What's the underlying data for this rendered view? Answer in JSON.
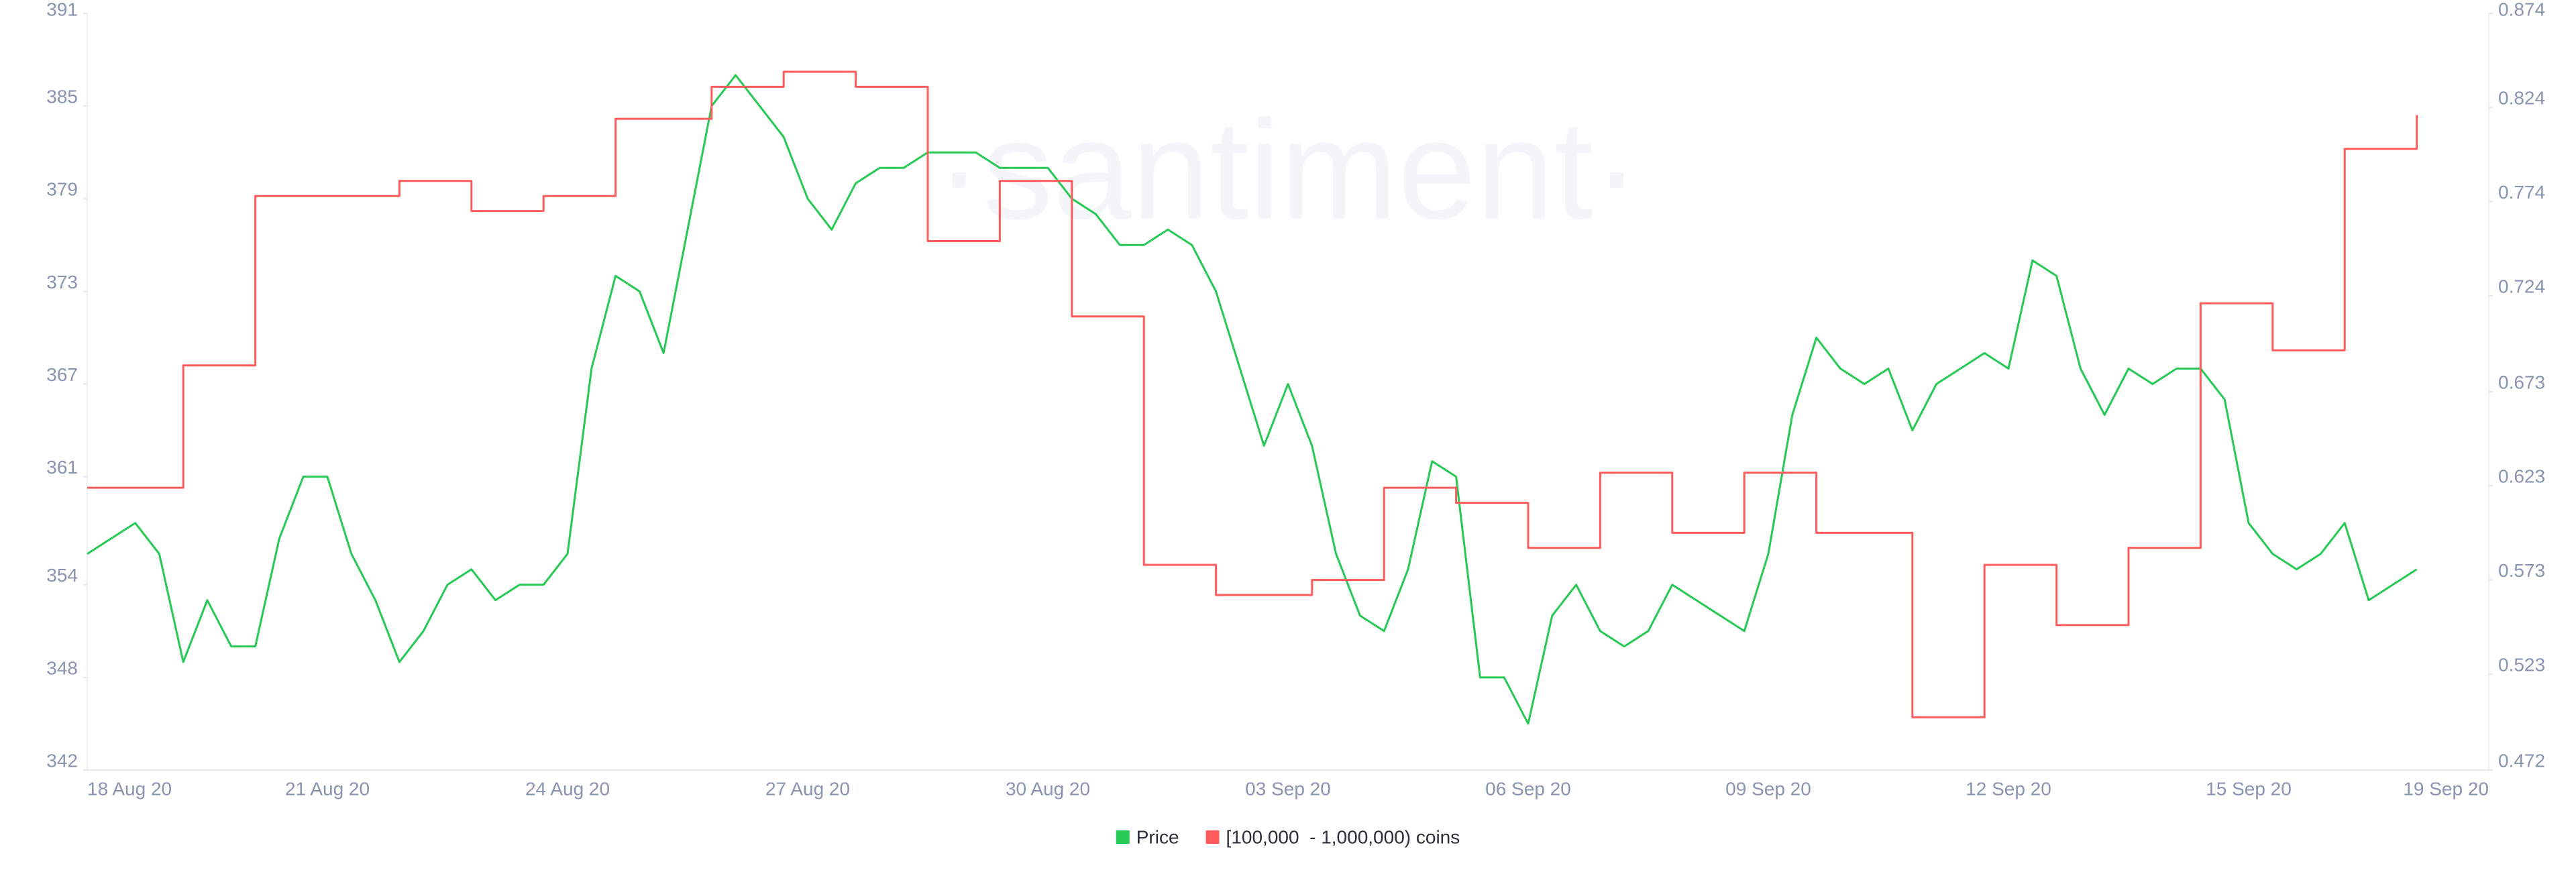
{
  "chart_data": {
    "type": "line",
    "watermark": "·santiment·",
    "categories": [
      "18 Aug 20",
      null,
      null,
      null,
      null,
      null,
      null,
      null,
      null,
      null,
      "21 Aug 20",
      null,
      null,
      null,
      null,
      null,
      null,
      null,
      null,
      null,
      "24 Aug 20",
      null,
      null,
      null,
      null,
      null,
      null,
      null,
      null,
      null,
      "27 Aug 20",
      null,
      null,
      null,
      null,
      null,
      null,
      null,
      null,
      null,
      "30 Aug 20",
      null,
      null,
      null,
      null,
      null,
      null,
      null,
      null,
      null,
      "03 Sep 20",
      null,
      null,
      null,
      null,
      null,
      null,
      null,
      null,
      null,
      "06 Sep 20",
      null,
      null,
      null,
      null,
      null,
      null,
      null,
      null,
      null,
      "09 Sep 20",
      null,
      null,
      null,
      null,
      null,
      null,
      null,
      null,
      null,
      "12 Sep 20",
      null,
      null,
      null,
      null,
      null,
      null,
      null,
      null,
      null,
      "15 Sep 20",
      null,
      null,
      null,
      null,
      null,
      null,
      null,
      null,
      null,
      "19 Sep 20"
    ],
    "series": [
      {
        "name": "Price",
        "color": "#26c953",
        "axis": "y",
        "values": [
          356,
          357,
          358,
          356,
          349,
          353,
          350,
          350,
          357,
          361,
          361,
          356,
          353,
          349,
          351,
          354,
          355,
          353,
          354,
          354,
          356,
          368,
          374,
          373,
          369,
          377,
          385,
          387,
          385,
          383,
          379,
          377,
          380,
          381,
          381,
          382,
          382,
          382,
          381,
          381,
          381,
          379,
          378,
          376,
          376,
          377,
          376,
          373,
          368,
          363,
          367,
          363,
          356,
          352,
          351,
          355,
          362,
          361,
          348,
          348,
          345,
          352,
          354,
          351,
          350,
          351,
          354,
          353,
          352,
          351,
          356,
          365,
          370,
          368,
          367,
          368,
          364,
          367,
          368,
          369,
          368,
          375,
          374,
          368,
          365,
          368,
          367,
          368,
          368,
          366,
          358,
          356,
          355,
          356,
          358,
          353,
          354,
          355,
          null,
          null,
          null
        ]
      },
      {
        "name": "[100,000  - 1,000,000) coins",
        "color": "#ff5b5b",
        "axis": "y2",
        "step": true,
        "values": [
          0.622,
          0.622,
          0.622,
          0.622,
          0.687,
          0.687,
          0.687,
          0.777,
          0.777,
          0.777,
          0.777,
          0.777,
          0.777,
          0.785,
          0.785,
          0.785,
          0.769,
          0.769,
          0.769,
          0.777,
          0.777,
          0.777,
          0.818,
          0.818,
          0.818,
          0.818,
          0.835,
          0.835,
          0.835,
          0.843,
          0.843,
          0.843,
          0.835,
          0.835,
          0.835,
          0.753,
          0.753,
          0.753,
          0.785,
          0.785,
          0.785,
          0.713,
          0.713,
          0.713,
          0.581,
          0.581,
          0.581,
          0.565,
          0.565,
          0.565,
          0.565,
          0.573,
          0.573,
          0.573,
          0.622,
          0.622,
          0.622,
          0.614,
          0.614,
          0.614,
          0.59,
          0.59,
          0.59,
          0.63,
          0.63,
          0.63,
          0.598,
          0.598,
          0.598,
          0.63,
          0.63,
          0.63,
          0.598,
          0.598,
          0.598,
          0.598,
          0.5,
          0.5,
          0.5,
          0.581,
          0.581,
          0.581,
          0.549,
          0.549,
          0.549,
          0.59,
          0.59,
          0.59,
          0.72,
          0.72,
          0.72,
          0.695,
          0.695,
          0.695,
          0.802,
          0.802,
          0.802,
          0.82,
          null,
          null,
          null
        ]
      }
    ],
    "ylim": [
      342,
      391
    ],
    "yticks": [
      342,
      348,
      354,
      361,
      367,
      373,
      379,
      385,
      391
    ],
    "y2lim": [
      0.472,
      0.874
    ],
    "y2ticks": [
      0.472,
      0.523,
      0.573,
      0.623,
      0.673,
      0.724,
      0.774,
      0.824,
      0.874
    ],
    "legend": "bottom"
  }
}
